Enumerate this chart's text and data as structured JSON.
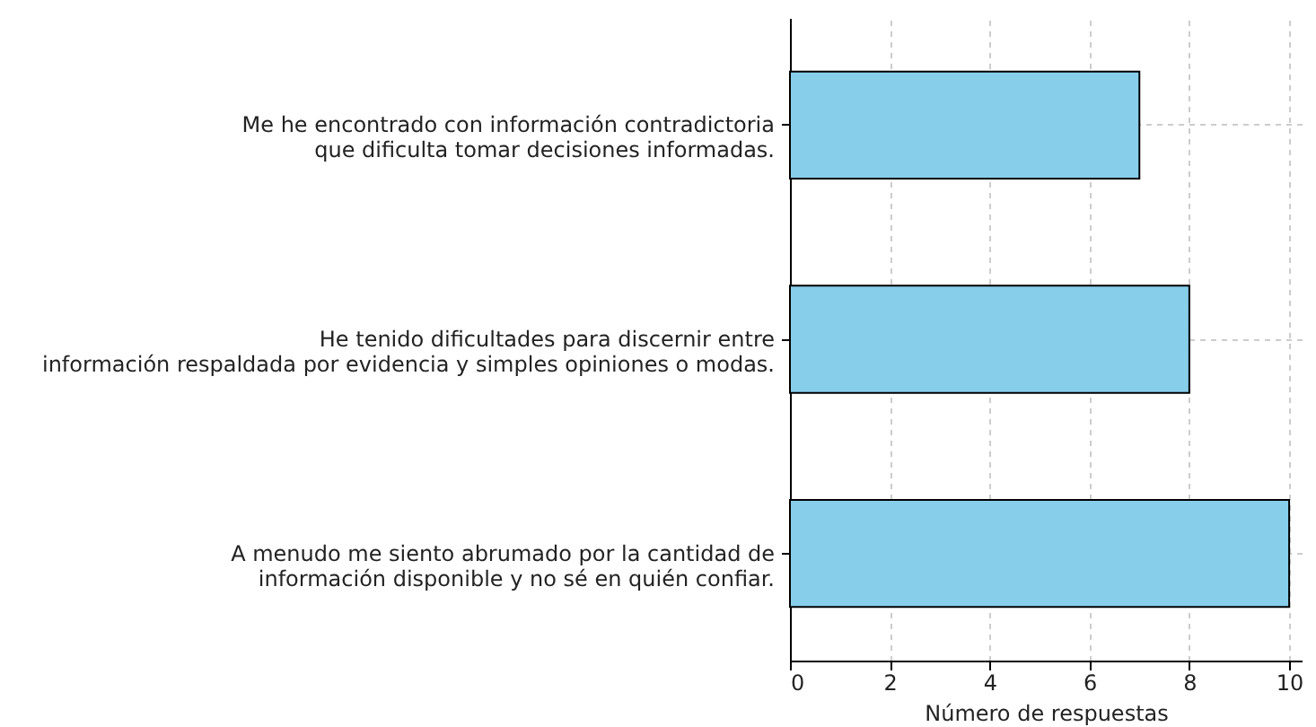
{
  "chart_data": {
    "type": "bar",
    "orientation": "horizontal",
    "categories": [
      "Me he encontrado con información contradictoria\nque dificulta tomar decisiones informadas.",
      "He tenido dificultades para discernir entre\ninformación respaldada por evidencia y simples opiniones o modas.",
      "A menudo me siento abrumado por la cantidad de\ninformación disponible y no sé en quién confiar."
    ],
    "values": [
      7,
      8,
      10
    ],
    "color": "#87ceeb",
    "xlabel": "Número de respuestas",
    "xlim": [
      0,
      10.25
    ],
    "xticks": [
      0,
      2,
      4,
      6,
      8,
      10
    ],
    "grid": true
  }
}
